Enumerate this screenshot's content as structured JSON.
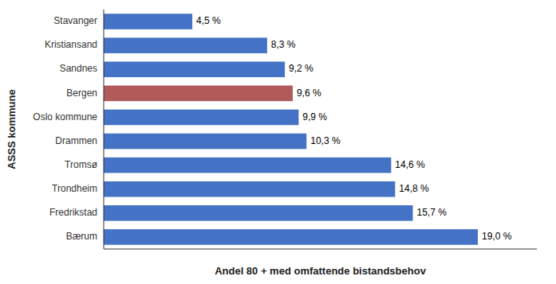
{
  "chart_data": {
    "type": "bar",
    "orientation": "horizontal",
    "categories": [
      "Bærum",
      "Fredrikstad",
      "Trondheim",
      "Tromsø",
      "Drammen",
      "Oslo kommune",
      "Bergen",
      "Sandnes",
      "Kristiansand",
      "Stavanger"
    ],
    "values": [
      19.0,
      15.7,
      14.8,
      14.6,
      10.3,
      9.9,
      9.6,
      9.2,
      8.3,
      4.5
    ],
    "value_labels": [
      "19,0 %",
      "15,7 %",
      "14,8 %",
      "14,6 %",
      "10,3 %",
      "9,9 %",
      "9,6 %",
      "9,2 %",
      "8,3 %",
      "4,5 %"
    ],
    "colors": [
      "#4472C4",
      "#4472C4",
      "#4472C4",
      "#4472C4",
      "#4472C4",
      "#4472C4",
      "#B05A5A",
      "#4472C4",
      "#4472C4",
      "#4472C4"
    ],
    "xlabel": "Andel 80 + med omfattende bistandsbehov",
    "ylabel": "ASSS kommune",
    "xlim": [
      0,
      22
    ],
    "data_labels": true,
    "tick_labels": "y",
    "grid": false
  }
}
